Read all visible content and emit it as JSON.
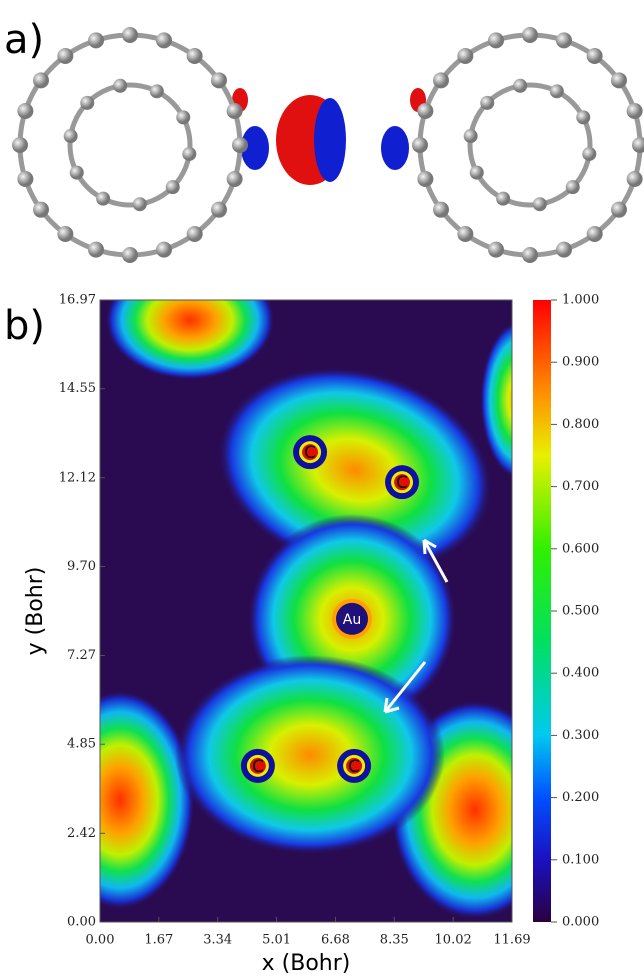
{
  "panel_a": {
    "label": "a)"
  },
  "chart_data": {
    "type": "heatmap",
    "panel_label": "b)",
    "xlabel": "x (Bohr)",
    "ylabel": "y (Bohr)",
    "xlim": [
      0,
      11.69
    ],
    "ylim": [
      0,
      16.97
    ],
    "xticks": [
      {
        "value": 0,
        "label": "0.00"
      },
      1.67,
      3.34,
      5.01,
      6.68,
      8.35,
      10.02,
      11.69
    ],
    "yticks": [
      {
        "value": 0,
        "label": "0.00"
      },
      2.42,
      4.85,
      7.27,
      {
        "value": 9.7,
        "label": "9.70"
      },
      12.12,
      14.55,
      16.97
    ],
    "colorbar": {
      "lim": [
        0,
        1
      ],
      "ticks": [
        {
          "value": 0,
          "label": "0.000"
        },
        {
          "value": 0.1,
          "label": "0.100"
        },
        {
          "value": 0.2,
          "label": "0.200"
        },
        {
          "value": 0.3,
          "label": "0.300"
        },
        {
          "value": 0.4,
          "label": "0.400"
        },
        {
          "value": 0.5,
          "label": "0.500"
        },
        {
          "value": 0.6,
          "label": "0.600"
        },
        {
          "value": 0.7,
          "label": "0.700"
        },
        {
          "value": 0.8,
          "label": "0.800"
        },
        {
          "value": 0.9,
          "label": "0.900"
        },
        {
          "value": 1,
          "label": "1.000"
        }
      ]
    },
    "annotations": [
      {
        "text": "C",
        "x": 5.96,
        "y": 12.82
      },
      {
        "text": "C",
        "x": 8.57,
        "y": 12.0
      },
      {
        "text": "Au",
        "x": 7.15,
        "y": 8.27
      },
      {
        "text": "C",
        "x": 4.48,
        "y": 4.26
      },
      {
        "text": "C",
        "x": 7.21,
        "y": 4.26
      }
    ]
  }
}
